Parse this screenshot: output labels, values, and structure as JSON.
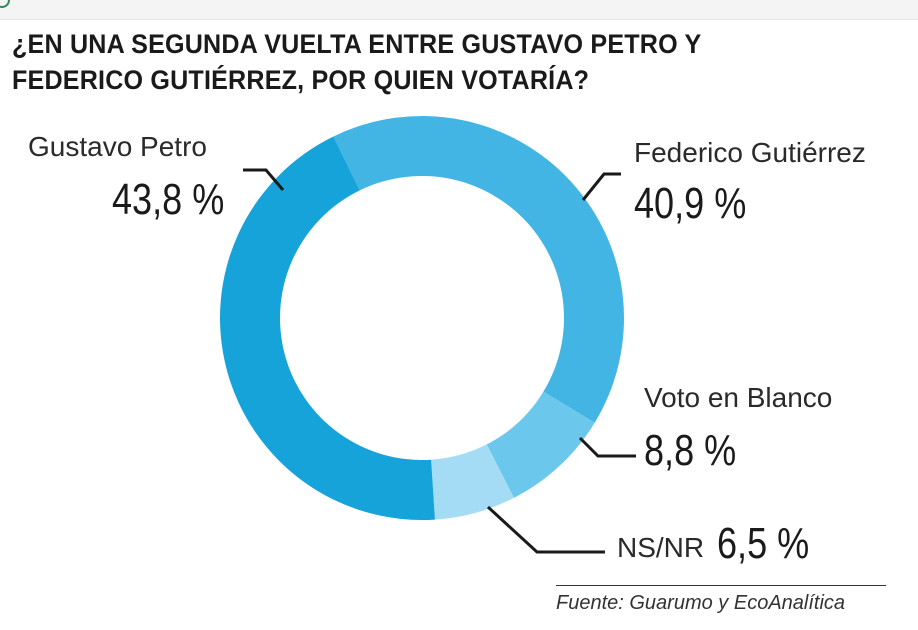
{
  "title": "¿EN UNA SEGUNDA VUELTA ENTRE GUSTAVO PETRO Y FEDERICO GUTIÉRREZ, POR QUIEN VOTARÍA?",
  "source": "Fuente: Guarumo y EcoAnalítica",
  "chart_data": {
    "type": "pie",
    "donut": true,
    "title": "¿EN UNA SEGUNDA VUELTA ENTRE GUSTAVO PETRO Y FEDERICO GUTIÉRREZ, POR QUIEN VOTARÍA?",
    "unit": "%",
    "slices": [
      {
        "label": "Federico Gutiérrez",
        "value": 40.9,
        "display": "40,9 %",
        "color": "#43b5e4"
      },
      {
        "label": "Voto en Blanco",
        "value": 8.8,
        "display": "8,8 %",
        "color": "#6cc7ec"
      },
      {
        "label": "NS/NR",
        "value": 6.5,
        "display": "6,5 %",
        "color": "#a3dcf4"
      },
      {
        "label": "Gustavo Petro",
        "value": 43.8,
        "display": "43,8 %",
        "color": "#16a3da"
      }
    ]
  }
}
